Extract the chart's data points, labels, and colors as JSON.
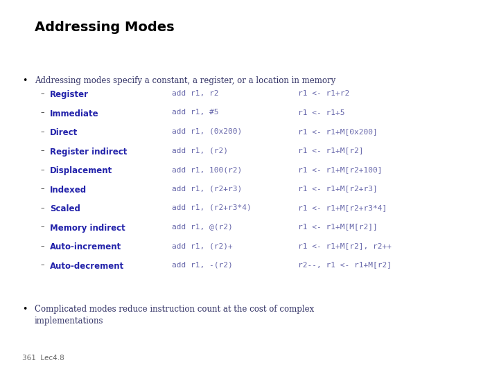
{
  "title": "Addressing Modes",
  "bg_color": "#ffffff",
  "title_color": "#000000",
  "title_fontsize": 14,
  "bullet_color": "#000000",
  "bullet1_text": "Addressing modes specify a constant, a register, or a location in memory",
  "bullet2_text": "Complicated modes reduce instruction count at the cost of complex\nimplementations",
  "label_color": "#2222aa",
  "body_text_color": "#333366",
  "code_color": "#6666aa",
  "dash_color": "#333333",
  "footer_text": "361  Lec4.8",
  "rows": [
    {
      "label": "Register",
      "code": "add r1, r2",
      "effect": "r1 <- r1+r2"
    },
    {
      "label": "Immediate",
      "code": "add r1, #5",
      "effect": "r1 <- r1+5"
    },
    {
      "label": "Direct",
      "code": "add r1, (0x200)",
      "effect": "r1 <- r1+M[0x200]"
    },
    {
      "label": "Register indirect",
      "code": "add r1, (r2)",
      "effect": "r1 <- r1+M[r2]"
    },
    {
      "label": "Displacement",
      "code": "add r1, 100(r2)",
      "effect": "r1 <- r1+M[r2+100]"
    },
    {
      "label": "Indexed",
      "code": "add r1, (r2+r3)",
      "effect": "r1 <- r1+M[r2+r3]"
    },
    {
      "label": "Scaled",
      "code": "add r1, (r2+r3*4)",
      "effect": "r1 <- r1+M[r2+r3*4]"
    },
    {
      "label": "Memory indirect",
      "code": "add r1, @(r2)",
      "effect": "r1 <- r1+M[M[r2]]"
    },
    {
      "label": "Auto-increment",
      "code": "add r1, (r2)+",
      "effect": "r1 <- r1+M[r2], r2++"
    },
    {
      "label": "Auto-decrement",
      "code": "add r1, -(r2)",
      "effect": "r2--, r1 <- r1+M[r2]"
    }
  ]
}
